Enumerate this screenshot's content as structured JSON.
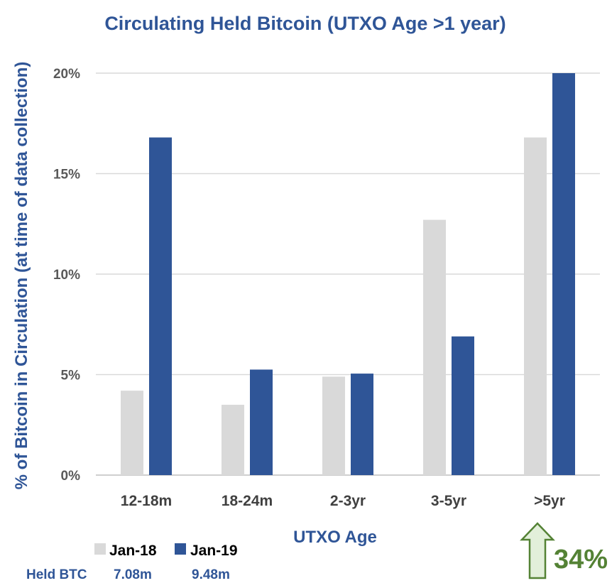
{
  "chart_data": {
    "type": "bar",
    "title": "Circulating Held Bitcoin (UTXO Age >1 year)",
    "xlabel": "UTXO Age",
    "ylabel": "% of Bitcoin in Circulation (at time of data collection)",
    "categories": [
      "12-18m",
      "18-24m",
      "2-3yr",
      "3-5yr",
      ">5yr"
    ],
    "series": [
      {
        "name": "Jan-18",
        "color": "#d9d9d9",
        "values": [
          4.2,
          3.5,
          4.9,
          12.7,
          16.8
        ]
      },
      {
        "name": "Jan-19",
        "color": "#2f5597",
        "values": [
          16.8,
          5.25,
          5.05,
          6.9,
          20.0
        ]
      }
    ],
    "ylim": [
      0,
      20
    ],
    "yticks": [
      0,
      5,
      10,
      15,
      20
    ],
    "ytick_labels": [
      "0%",
      "5%",
      "10%",
      "15%",
      "20%"
    ],
    "grid": true,
    "legend_position": "bottom-left"
  },
  "summary": {
    "held_label": "Held BTC",
    "jan18_value": "7.08m",
    "jan19_value": "9.48m"
  },
  "annotation": {
    "change_label": "34%",
    "arrow_icon": "up-arrow-icon",
    "arrow_color": "#548235"
  }
}
